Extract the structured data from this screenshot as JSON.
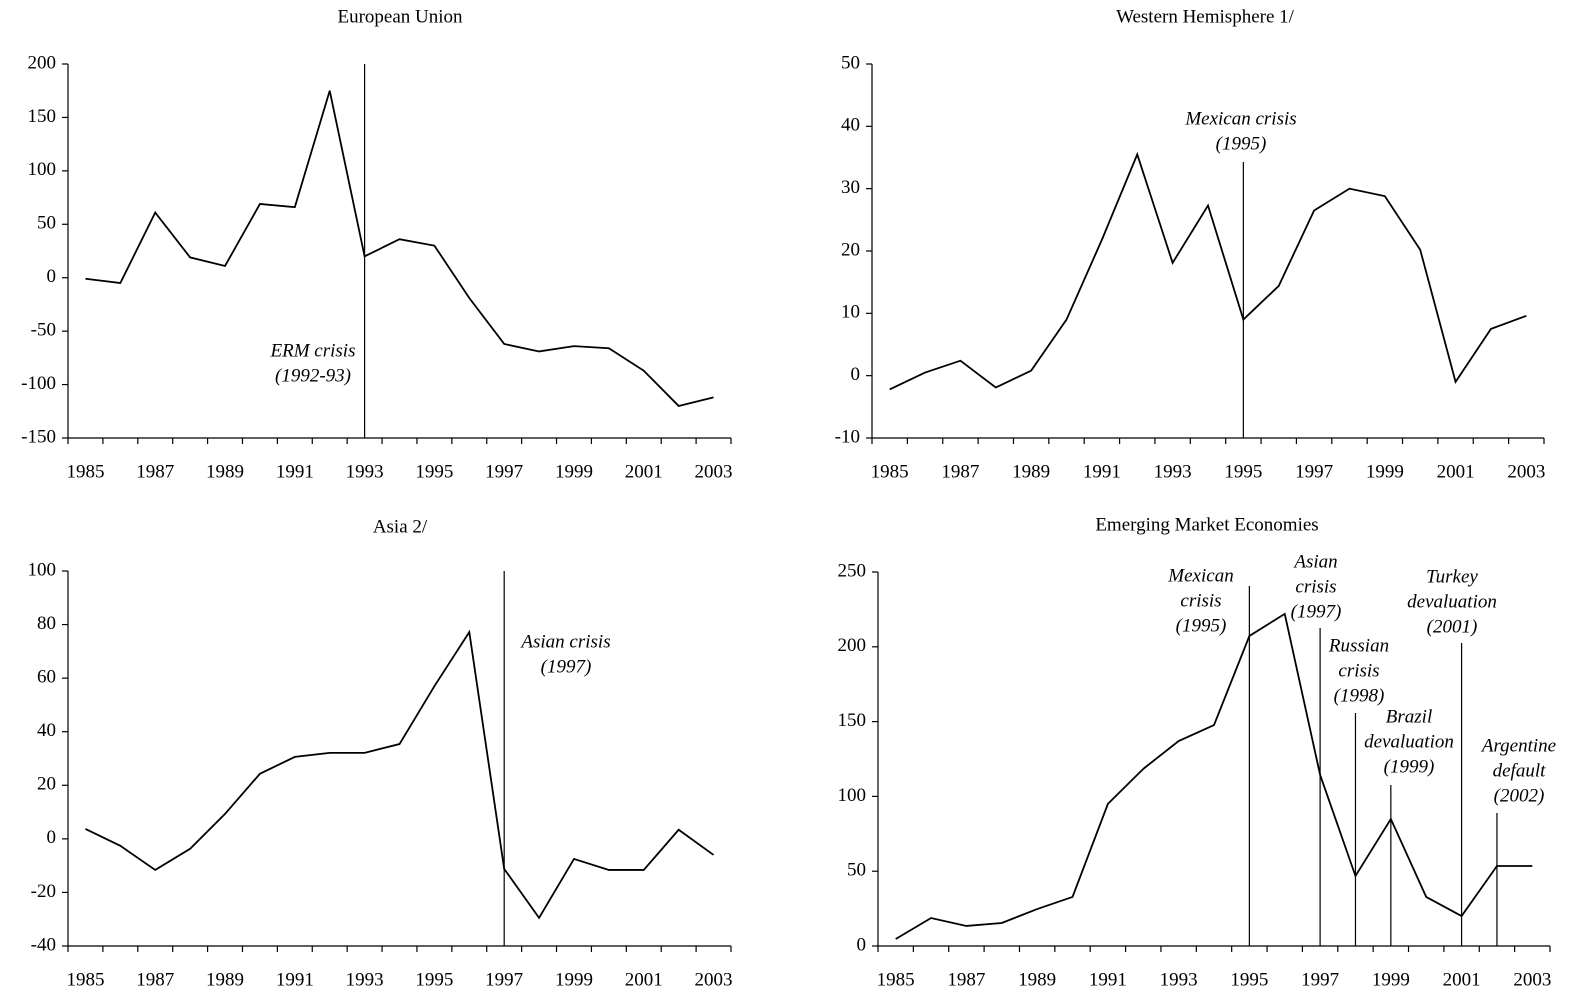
{
  "chart_data": [
    {
      "type": "line",
      "title": "European Union",
      "color": "#000000",
      "x": [
        1985,
        1986,
        1987,
        1988,
        1989,
        1990,
        1991,
        1992,
        1993,
        1994,
        1995,
        1996,
        1997,
        1998,
        1999,
        2000,
        2001,
        2002,
        2003
      ],
      "values": [
        -1,
        -5,
        61,
        19,
        11,
        69,
        66,
        175,
        20,
        36,
        30,
        -19,
        -62,
        -69,
        -64,
        -66,
        -87,
        -120,
        -112
      ],
      "xlim": [
        1984.5,
        2003.5
      ],
      "xticks": [
        1985,
        1987,
        1989,
        1991,
        1993,
        1995,
        1997,
        1999,
        2001,
        2003
      ],
      "ylim": [
        -150,
        200
      ],
      "yticks": [
        -150,
        -100,
        -50,
        0,
        50,
        100,
        150,
        200
      ],
      "annotations": [
        {
          "text": [
            "ERM crisis",
            "(1992-93)"
          ],
          "x": 1993
        }
      ]
    },
    {
      "type": "line",
      "title": "Western Hemisphere  1/",
      "color": "#000000",
      "x": [
        1985,
        1986,
        1987,
        1988,
        1989,
        1990,
        1991,
        1992,
        1993,
        1994,
        1995,
        1996,
        1997,
        1998,
        1999,
        2000,
        2001,
        2002,
        2003
      ],
      "values": [
        -2.2,
        0.5,
        2.4,
        -1.9,
        0.8,
        9,
        21.8,
        35.5,
        18.1,
        27.3,
        9,
        14.4,
        26.5,
        30,
        28.8,
        20.2,
        -1,
        7.5,
        9.6
      ],
      "xlim": [
        1984.5,
        2003.5
      ],
      "xticks": [
        1985,
        1987,
        1989,
        1991,
        1993,
        1995,
        1997,
        1999,
        2001,
        2003
      ],
      "ylim": [
        -10,
        50
      ],
      "yticks": [
        -10,
        0,
        10,
        20,
        30,
        40,
        50
      ],
      "annotations": [
        {
          "text": [
            "Mexican crisis",
            "(1995)"
          ],
          "x": 1995
        }
      ]
    },
    {
      "type": "line",
      "title": "Asia  2/",
      "color": "#000000",
      "x": [
        1985,
        1986,
        1987,
        1988,
        1989,
        1990,
        1991,
        1992,
        1993,
        1994,
        1995,
        1996,
        1997,
        1998,
        1999,
        2000,
        2001,
        2002,
        2003
      ],
      "values": [
        3.7,
        -2.6,
        -11.6,
        -3.7,
        9.3,
        24.3,
        30.6,
        32.1,
        32.1,
        35.4,
        57,
        77.2,
        -11.2,
        -29.5,
        -7.5,
        -11.6,
        -11.6,
        3.4,
        -6
      ],
      "xlim": [
        1984.5,
        2003.5
      ],
      "xticks": [
        1985,
        1987,
        1989,
        1991,
        1993,
        1995,
        1997,
        1999,
        2001,
        2003
      ],
      "ylim": [
        -40,
        100
      ],
      "yticks": [
        -40,
        -20,
        0,
        20,
        40,
        60,
        80,
        100
      ],
      "annotations": [
        {
          "text": [
            "Asian crisis",
            "(1997)"
          ],
          "x": 1997
        }
      ]
    },
    {
      "type": "line",
      "title": "Emerging Market Economies",
      "color": "#000000",
      "x": [
        1985,
        1986,
        1987,
        1988,
        1989,
        1990,
        1991,
        1992,
        1993,
        1994,
        1995,
        1996,
        1997,
        1998,
        1999,
        2000,
        2001,
        2002,
        2003
      ],
      "values": [
        4.7,
        18.7,
        13.4,
        15.4,
        24.7,
        32.8,
        95,
        118.4,
        137,
        147.7,
        207.2,
        222,
        114.4,
        46.8,
        84.9,
        32.8,
        20,
        53.5,
        53.5
      ],
      "xlim": [
        1984.5,
        2003.5
      ],
      "xticks": [
        1985,
        1987,
        1989,
        1991,
        1993,
        1995,
        1997,
        1999,
        2001,
        2003
      ],
      "ylim": [
        0,
        250
      ],
      "yticks": [
        0,
        50,
        100,
        150,
        200,
        250
      ],
      "annotations": [
        {
          "text": [
            "Mexican",
            "crisis",
            "(1995)"
          ],
          "x": 1995
        },
        {
          "text": [
            "Asian",
            "crisis",
            "(1997)"
          ],
          "x": 1997
        },
        {
          "text": [
            "Russian",
            "crisis",
            "(1998)"
          ],
          "x": 1998
        },
        {
          "text": [
            "Brazil",
            "devaluation",
            "(1999)"
          ],
          "x": 1999
        },
        {
          "text": [
            "Turkey",
            "devaluation",
            "(2001)"
          ],
          "x": 2001
        },
        {
          "text": [
            "Argentine",
            "default",
            "(2002)"
          ],
          "x": 2002
        }
      ]
    }
  ]
}
